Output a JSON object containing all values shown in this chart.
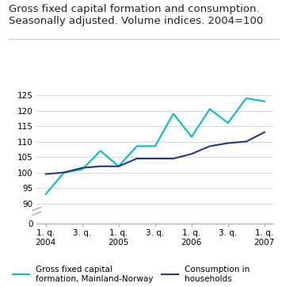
{
  "title": "Gross fixed capital formation and consumption.\nSeasonally adjusted. Volume indices. 2004=100",
  "title_fontsize": 9.5,
  "x_labels": [
    "1. q.\n2004",
    "3. q.",
    "1. q.\n2005",
    "3. q.",
    "1. q.\n2006",
    "3. q.",
    "1. q.\n2007"
  ],
  "x_positions": [
    0,
    2,
    4,
    6,
    8,
    10,
    12
  ],
  "gfcf_x": [
    0,
    1,
    2,
    3,
    4,
    5,
    6,
    7,
    8,
    9,
    10,
    11,
    12
  ],
  "gfcf_y": [
    93.0,
    100.0,
    101.0,
    107.0,
    102.0,
    108.5,
    108.5,
    119.0,
    111.5,
    120.5,
    116.0,
    124.0,
    123.0
  ],
  "consumption_x": [
    0,
    1,
    2,
    3,
    4,
    5,
    6,
    7,
    8,
    9,
    10,
    11,
    12
  ],
  "consumption_y": [
    99.5,
    100.0,
    101.5,
    102.0,
    102.0,
    104.5,
    104.5,
    104.5,
    106.0,
    108.5,
    109.5,
    110.0,
    113.0
  ],
  "gfcf_color": "#00BFBF",
  "consumption_color": "#1F3A8C",
  "grid_color": "#d8d8d8",
  "background_color": "#ffffff",
  "legend_gfcf": "Gross fixed capital\nformation, Mainland-Norway",
  "legend_consumption": "Consumption in\nhouseholds",
  "linewidth": 1.5,
  "yticks_main": [
    90,
    95,
    100,
    105,
    110,
    115,
    120,
    125
  ],
  "ylim_main": [
    88,
    127
  ],
  "xlim": [
    -0.5,
    12.5
  ]
}
